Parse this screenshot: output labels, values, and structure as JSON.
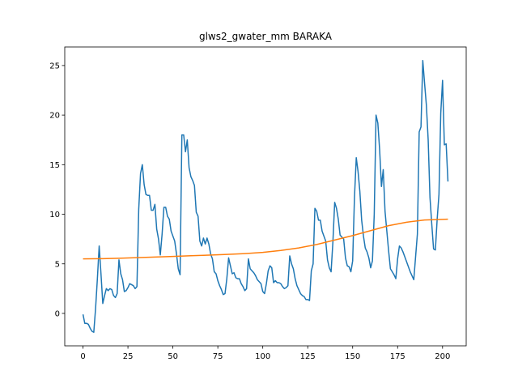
{
  "chart_data": {
    "type": "line",
    "title": "glws2_gwater_mm BARAKA",
    "xlim": [
      -10.15,
      213.15
    ],
    "ylim": [
      -3.27,
      26.87
    ],
    "xticks": [
      0,
      25,
      50,
      75,
      100,
      125,
      150,
      175,
      200
    ],
    "yticks": [
      0,
      5,
      10,
      15,
      20,
      25
    ],
    "series": [
      {
        "color": "#1f77b4",
        "x": [
          0,
          1,
          2,
          3,
          4,
          5,
          6,
          7,
          8,
          9,
          10,
          11,
          12,
          13,
          14,
          15,
          16,
          17,
          18,
          19,
          20,
          21,
          22,
          23,
          24,
          25,
          26,
          27,
          28,
          29,
          30,
          31,
          32,
          33,
          34,
          35,
          36,
          37,
          38,
          39,
          40,
          41,
          42,
          43,
          44,
          45,
          46,
          47,
          48,
          49,
          50,
          51,
          52,
          53,
          54,
          55,
          56,
          57,
          58,
          59,
          60,
          61,
          62,
          63,
          64,
          65,
          66,
          67,
          68,
          69,
          70,
          71,
          72,
          73,
          74,
          75,
          76,
          77,
          78,
          79,
          80,
          81,
          82,
          83,
          84,
          85,
          86,
          87,
          88,
          89,
          90,
          91,
          92,
          93,
          94,
          95,
          96,
          97,
          98,
          99,
          100,
          101,
          102,
          103,
          104,
          105,
          106,
          107,
          108,
          109,
          110,
          111,
          112,
          113,
          114,
          115,
          116,
          117,
          118,
          119,
          120,
          121,
          122,
          123,
          124,
          125,
          126,
          127,
          128,
          129,
          130,
          131,
          132,
          133,
          134,
          135,
          136,
          137,
          138,
          139,
          140,
          141,
          142,
          143,
          144,
          145,
          146,
          147,
          148,
          149,
          150,
          151,
          152,
          153,
          154,
          155,
          156,
          157,
          158,
          159,
          160,
          161,
          162,
          163,
          164,
          165,
          166,
          167,
          168,
          169,
          170,
          171,
          172,
          173,
          174,
          175,
          176,
          177,
          178,
          179,
          180,
          181,
          182,
          183,
          184,
          185,
          186,
          187,
          188,
          189,
          190,
          191,
          192,
          193,
          194,
          195,
          196,
          197,
          198,
          199,
          200,
          201,
          202,
          203
        ],
        "values": [
          -0.1,
          -1,
          -1,
          -1.1,
          -1.5,
          -1.8,
          -1.9,
          0.5,
          3.5,
          6.8,
          4,
          1,
          1.8,
          2.5,
          2.3,
          2.5,
          2.4,
          1.8,
          1.6,
          2,
          5.4,
          4,
          3.4,
          2.2,
          2.3,
          2.6,
          3,
          2.9,
          2.8,
          2.5,
          2.7,
          10.5,
          14.1,
          15,
          13,
          12,
          11.9,
          11.9,
          10.4,
          10.4,
          11,
          8.5,
          7.5,
          5.9,
          8,
          10.7,
          10.7,
          9.8,
          9.5,
          8.3,
          7.8,
          7.3,
          6,
          4.5,
          3.9,
          18,
          18,
          16.3,
          17.5,
          14.7,
          13.8,
          13.4,
          12.9,
          10.2,
          9.8,
          7.3,
          6.8,
          7.6,
          7,
          7.6,
          7,
          6,
          5.5,
          4.2,
          4,
          3.3,
          2.8,
          2.4,
          1.9,
          2,
          3.5,
          5.6,
          4.8,
          4,
          4.1,
          3.6,
          3.5,
          3.5,
          3,
          2.7,
          2.3,
          2.5,
          5.5,
          4.5,
          4.3,
          4.1,
          3.8,
          3.4,
          3.2,
          3,
          2.2,
          2,
          3,
          4.3,
          4.8,
          4.6,
          3.1,
          3.3,
          3.1,
          3.1,
          3,
          2.7,
          2.5,
          2.6,
          2.8,
          5.8,
          5,
          4.5,
          3.5,
          2.8,
          2.4,
          2,
          1.8,
          1.7,
          1.4,
          1.4,
          1.3,
          4.3,
          5,
          10.6,
          10.3,
          9.4,
          9.4,
          8.3,
          7.8,
          7.3,
          5.4,
          4.6,
          4.2,
          7.2,
          11.2,
          10.6,
          9.5,
          7.9,
          7.7,
          7.5,
          5.6,
          4.8,
          4.7,
          4.2,
          5.3,
          11.7,
          15.7,
          14.3,
          12.3,
          9.4,
          7.8,
          6.6,
          6.2,
          5.6,
          4.6,
          5.3,
          10,
          20,
          19.2,
          16.5,
          12.8,
          14.5,
          10.3,
          8.3,
          6.3,
          4.5,
          4.2,
          3.9,
          3.5,
          5.5,
          6.8,
          6.6,
          6.2,
          5.7,
          5.2,
          4.7,
          4.2,
          3.8,
          3.4,
          5.7,
          8,
          18.3,
          18.8,
          25.5,
          23.2,
          21,
          17.5,
          11.7,
          9,
          6.5,
          6.4,
          9.5,
          12,
          20.2,
          23.5,
          17,
          17.1,
          13.3
        ]
      },
      {
        "color": "#ff7f0e",
        "x": [
          0,
          10,
          20,
          30,
          40,
          50,
          60,
          70,
          80,
          90,
          100,
          110,
          120,
          130,
          140,
          150,
          160,
          170,
          180,
          190,
          200,
          203
        ],
        "values": [
          5.5,
          5.52,
          5.56,
          5.62,
          5.68,
          5.75,
          5.82,
          5.88,
          5.95,
          6.03,
          6.15,
          6.35,
          6.6,
          6.95,
          7.4,
          7.85,
          8.35,
          8.85,
          9.2,
          9.42,
          9.48,
          9.5
        ]
      }
    ]
  }
}
